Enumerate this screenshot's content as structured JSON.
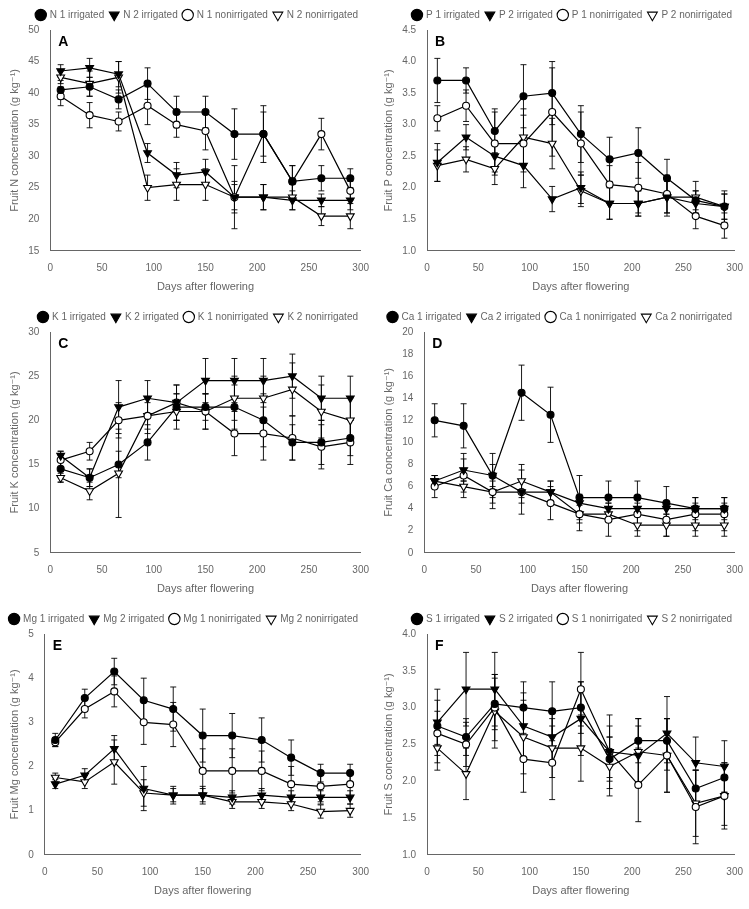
{
  "chart_data": [
    {
      "type": "line",
      "annotations": [
        "A"
      ],
      "x": [
        10,
        38,
        66,
        94,
        122,
        150,
        178,
        206,
        234,
        262,
        290
      ],
      "xlabel": "Days after flowering",
      "ylabel": "Fruit N concentration (g kg⁻¹)",
      "xlim": [
        0,
        300
      ],
      "xticks": [
        0,
        50,
        100,
        150,
        200,
        250,
        300
      ],
      "ylim": [
        15,
        50
      ],
      "yticks": [
        15,
        20,
        25,
        30,
        35,
        40,
        45,
        50
      ],
      "grid": false,
      "legend": "upper right",
      "series": [
        {
          "name": "N 1 irrigated",
          "color": "black",
          "marker": "circle",
          "values": [
            40.5,
            41.0,
            39.0,
            41.5,
            37.0,
            37.0,
            33.5,
            33.5,
            26.0,
            26.5,
            26.5
          ],
          "errors": [
            1.5,
            1.5,
            1.5,
            2.5,
            2.5,
            2.5,
            4.0,
            3.5,
            2.5,
            2.0,
            1.5
          ]
        },
        {
          "name": "N 2 irrigated",
          "color": "black",
          "marker": "triangle_down",
          "values": [
            43.5,
            44.0,
            43.0,
            30.5,
            27.0,
            27.5,
            23.5,
            23.5,
            23.0,
            23.0,
            23.0
          ],
          "errors": [
            1.0,
            1.5,
            2.0,
            1.5,
            2.0,
            2.0,
            2.5,
            2.0,
            1.5,
            1.0,
            1.5
          ]
        },
        {
          "name": "N 1 nonirrigated",
          "color": "black",
          "marker": "circle_open",
          "values": [
            39.5,
            36.5,
            35.5,
            38.0,
            35.0,
            34.0,
            23.5,
            33.5,
            26.0,
            33.5,
            24.5
          ],
          "errors": [
            1.5,
            2.0,
            1.5,
            3.0,
            2.0,
            3.0,
            5.0,
            4.5,
            2.5,
            2.5,
            1.5
          ]
        },
        {
          "name": "N 2 nonirrigated",
          "color": "black",
          "marker": "triangle_down_open",
          "values": [
            42.5,
            41.5,
            42.5,
            25.0,
            25.5,
            25.5,
            23.5,
            23.5,
            23.5,
            20.5,
            20.5
          ],
          "errors": [
            1.0,
            2.0,
            2.5,
            2.0,
            2.5,
            2.5,
            2.0,
            2.0,
            2.0,
            1.5,
            2.0
          ]
        }
      ]
    },
    {
      "type": "line",
      "annotations": [
        "B"
      ],
      "x": [
        10,
        38,
        66,
        94,
        122,
        150,
        178,
        206,
        234,
        262,
        290
      ],
      "xlabel": "Days after flowering",
      "ylabel": "Fruit P concentration (g kg⁻¹)",
      "xlim": [
        0,
        300
      ],
      "xticks": [
        0,
        50,
        100,
        150,
        200,
        250,
        300
      ],
      "ylim": [
        1.0,
        4.5
      ],
      "yticks": [
        {
          "value": 1.0,
          "label": "1.0"
        },
        1.5,
        {
          "value": 2.0,
          "label": "2.0"
        },
        2.5,
        {
          "value": 3.0,
          "label": "3.0"
        },
        3.5,
        {
          "value": 4.0,
          "label": "4.0"
        },
        4.5
      ],
      "grid": false,
      "legend": "upper right",
      "series": [
        {
          "name": "P 1 irrigated",
          "color": "black",
          "marker": "circle",
          "values": [
            3.7,
            3.7,
            2.9,
            3.45,
            3.5,
            2.85,
            2.45,
            2.55,
            2.15,
            1.8,
            1.7
          ],
          "errors": [
            0.35,
            0.2,
            0.35,
            0.5,
            0.5,
            0.45,
            0.35,
            0.4,
            0.3,
            0.15,
            0.2
          ]
        },
        {
          "name": "P 2 irrigated",
          "color": "black",
          "marker": "triangle_down",
          "values": [
            2.4,
            2.8,
            2.5,
            2.35,
            1.82,
            2.0,
            1.75,
            1.75,
            1.85,
            1.75,
            1.7
          ],
          "errors": [
            0.3,
            0.2,
            0.25,
            0.35,
            0.2,
            0.25,
            0.25,
            0.2,
            0.25,
            0.2,
            0.2
          ]
        },
        {
          "name": "P 1 nonirrigated",
          "color": "black",
          "marker": "circle_open",
          "values": [
            3.1,
            3.3,
            2.7,
            2.7,
            3.2,
            2.7,
            2.05,
            2.0,
            1.9,
            1.55,
            1.4
          ],
          "errors": [
            0.2,
            0.25,
            0.5,
            0.45,
            0.7,
            0.5,
            0.3,
            0.4,
            0.3,
            0.2,
            0.2
          ]
        },
        {
          "name": "P 2 nonirrigated",
          "color": "black",
          "marker": "triangle_down_open",
          "values": [
            2.35,
            2.45,
            2.3,
            2.8,
            2.7,
            1.95,
            1.75,
            1.75,
            1.85,
            1.85,
            1.7
          ],
          "errors": [
            0.25,
            0.2,
            0.25,
            0.45,
            0.4,
            0.25,
            0.25,
            0.2,
            0.3,
            0.25,
            0.25
          ]
        }
      ]
    },
    {
      "type": "line",
      "annotations": [
        "C"
      ],
      "x": [
        10,
        38,
        66,
        94,
        122,
        150,
        178,
        206,
        234,
        262,
        290
      ],
      "xlabel": "Days after flowering",
      "ylabel": "Fruit K concentration (g kg⁻¹)",
      "xlim": [
        0,
        300
      ],
      "xticks": [
        0,
        50,
        100,
        150,
        200,
        250,
        300
      ],
      "ylim": [
        5,
        30
      ],
      "yticks": [
        5,
        10,
        15,
        20,
        25,
        30
      ],
      "grid": false,
      "legend": "upper right",
      "series": [
        {
          "name": "K 1 irrigated",
          "color": "black",
          "marker": "circle",
          "values": [
            14.5,
            13.5,
            15.0,
            17.5,
            21.5,
            21.5,
            21.5,
            20.0,
            17.5,
            17.5,
            18.0
          ],
          "errors": [
            1.5,
            1.0,
            1.5,
            2.0,
            1.5,
            1.5,
            2.5,
            3.0,
            2.0,
            2.5,
            2.0
          ]
        },
        {
          "name": "K 2 irrigated",
          "color": "black",
          "marker": "triangle_down",
          "values": [
            16.0,
            13.5,
            21.5,
            22.5,
            22.0,
            24.5,
            24.5,
            24.5,
            25.0,
            22.5,
            22.5
          ],
          "errors": [
            0.5,
            1.0,
            3.0,
            2.0,
            2.0,
            2.5,
            2.5,
            2.5,
            2.5,
            2.5,
            2.5
          ]
        },
        {
          "name": "K 1 nonirrigated",
          "color": "black",
          "marker": "circle_open",
          "values": [
            15.5,
            16.5,
            20.0,
            20.5,
            22.0,
            21.0,
            18.5,
            18.5,
            18.0,
            17.0,
            17.5
          ],
          "errors": [
            1.0,
            1.0,
            2.0,
            1.5,
            2.0,
            2.0,
            2.5,
            3.0,
            2.5,
            2.5,
            2.5
          ]
        },
        {
          "name": "K 2 nonirrigated",
          "color": "black",
          "marker": "triangle_down_open",
          "values": [
            13.5,
            12.0,
            14.0,
            20.5,
            21.0,
            21.0,
            22.5,
            22.5,
            23.5,
            21.0,
            20.0
          ],
          "errors": [
            0.5,
            1.0,
            5.0,
            2.0,
            2.0,
            2.0,
            2.5,
            2.5,
            3.0,
            3.0,
            2.5
          ]
        }
      ]
    },
    {
      "type": "line",
      "annotations": [
        "D"
      ],
      "x": [
        10,
        38,
        66,
        94,
        122,
        150,
        178,
        206,
        234,
        262,
        290
      ],
      "xlabel": "Days after flowering",
      "ylabel": "Fruit Ca concentration (g kg⁻¹)",
      "xlim": [
        0,
        300
      ],
      "xticks": [
        0,
        50,
        100,
        150,
        200,
        250,
        300
      ],
      "ylim": [
        0,
        20
      ],
      "yticks": [
        0,
        2,
        4,
        6,
        8,
        10,
        12,
        14,
        16,
        18,
        20
      ],
      "grid": false,
      "legend": "upper right",
      "series": [
        {
          "name": "Ca 1 irrigated",
          "color": "black",
          "marker": "circle",
          "values": [
            12.0,
            11.5,
            7.0,
            14.5,
            12.5,
            5.0,
            5.0,
            5.0,
            4.5,
            4.0,
            4.0
          ],
          "errors": [
            1.5,
            2.0,
            2.0,
            2.5,
            2.5,
            2.0,
            1.5,
            1.5,
            1.5,
            1.0,
            1.0
          ]
        },
        {
          "name": "Ca 2 irrigated",
          "color": "black",
          "marker": "triangle_down",
          "values": [
            6.5,
            7.5,
            7.0,
            5.5,
            5.5,
            4.5,
            4.0,
            4.0,
            4.0,
            4.0,
            4.0
          ],
          "errors": [
            0.5,
            1.0,
            1.0,
            1.0,
            1.0,
            0.8,
            0.5,
            0.5,
            0.5,
            0.5,
            0.5
          ]
        },
        {
          "name": "Ca 1 nonirrigated",
          "color": "black",
          "marker": "circle_open",
          "values": [
            6.0,
            7.0,
            5.5,
            5.5,
            4.5,
            3.5,
            3.0,
            3.5,
            3.0,
            3.5,
            3.5
          ],
          "errors": [
            1.0,
            2.0,
            1.5,
            2.0,
            1.5,
            1.5,
            1.5,
            1.5,
            1.5,
            1.5,
            1.5
          ]
        },
        {
          "name": "Ca 2 nonirrigated",
          "color": "black",
          "marker": "triangle_down_open",
          "values": [
            6.5,
            6.0,
            5.5,
            6.5,
            5.5,
            3.5,
            3.5,
            2.5,
            2.5,
            2.5,
            2.5
          ],
          "errors": [
            0.5,
            0.5,
            1.0,
            1.5,
            1.0,
            0.8,
            0.5,
            1.0,
            1.0,
            1.0,
            1.0
          ]
        }
      ]
    },
    {
      "type": "line",
      "annotations": [
        "E"
      ],
      "x": [
        10,
        38,
        66,
        94,
        122,
        150,
        178,
        206,
        234,
        262,
        290
      ],
      "xlabel": "Days after flowering",
      "ylabel": "Fruit Mg concentration (g kg⁻¹)",
      "xlim": [
        0,
        300
      ],
      "xticks": [
        0,
        50,
        100,
        150,
        200,
        250,
        300
      ],
      "ylim": [
        0,
        5
      ],
      "yticks": [
        0,
        1,
        2,
        3,
        4,
        5
      ],
      "grid": false,
      "legend": "upper right",
      "series": [
        {
          "name": "Mg 1 irrigated",
          "color": "black",
          "marker": "circle",
          "values": [
            2.6,
            3.55,
            4.15,
            3.5,
            3.3,
            2.7,
            2.7,
            2.6,
            2.2,
            1.85,
            1.85
          ],
          "errors": [
            0.15,
            0.2,
            0.3,
            0.5,
            0.5,
            0.6,
            0.5,
            0.5,
            0.4,
            0.2,
            0.2
          ]
        },
        {
          "name": "Mg 2 irrigated",
          "color": "black",
          "marker": "triangle_down",
          "values": [
            1.6,
            1.8,
            2.4,
            1.5,
            1.35,
            1.35,
            1.3,
            1.35,
            1.3,
            1.3,
            1.3
          ],
          "errors": [
            0.1,
            0.15,
            0.3,
            0.5,
            0.2,
            0.2,
            0.15,
            0.15,
            0.15,
            0.15,
            0.15
          ]
        },
        {
          "name": "Mg 1 nonirrigated",
          "color": "black",
          "marker": "circle_open",
          "values": [
            2.55,
            3.3,
            3.7,
            3.0,
            2.95,
            1.9,
            1.9,
            1.9,
            1.6,
            1.55,
            1.6
          ],
          "errors": [
            0.1,
            0.2,
            0.35,
            0.5,
            0.5,
            0.5,
            0.5,
            0.45,
            0.4,
            0.35,
            0.3
          ]
        },
        {
          "name": "Mg 2 nonirrigated",
          "color": "black",
          "marker": "triangle_down_open",
          "values": [
            1.75,
            1.65,
            2.1,
            1.4,
            1.35,
            1.35,
            1.2,
            1.2,
            1.15,
            0.98,
            1.0
          ],
          "errors": [
            0.1,
            0.15,
            0.5,
            0.3,
            0.15,
            0.15,
            0.15,
            0.15,
            0.15,
            0.15,
            0.15
          ]
        }
      ]
    },
    {
      "type": "line",
      "annotations": [
        "F"
      ],
      "x": [
        10,
        38,
        66,
        94,
        122,
        150,
        178,
        206,
        234,
        262,
        290
      ],
      "xlabel": "Days after flowering",
      "ylabel": "Fruit S concentration (g kg⁻¹)",
      "xlim": [
        0,
        300
      ],
      "xticks": [
        0,
        50,
        100,
        150,
        200,
        250,
        300
      ],
      "ylim": [
        1.0,
        4.0
      ],
      "yticks": [
        {
          "value": 1.0,
          "label": "1.0"
        },
        1.5,
        {
          "value": 2.0,
          "label": "2.0"
        },
        2.5,
        {
          "value": 3.0,
          "label": "3.0"
        },
        3.5,
        {
          "value": 4.0,
          "label": "4.0"
        }
      ],
      "grid": false,
      "legend": "upper right",
      "series": [
        {
          "name": "S 1 irrigated",
          "color": "black",
          "marker": "circle",
          "values": [
            2.75,
            2.6,
            3.05,
            3.0,
            2.95,
            3.0,
            2.3,
            2.55,
            2.55,
            1.9,
            2.05
          ],
          "errors": [
            0.5,
            0.25,
            0.35,
            0.35,
            0.4,
            0.35,
            0.3,
            0.3,
            0.3,
            0.25,
            0.2
          ]
        },
        {
          "name": "S 2 irrigated",
          "color": "black",
          "marker": "triangle_down",
          "values": [
            2.8,
            3.25,
            3.25,
            2.75,
            2.6,
            2.85,
            2.4,
            2.35,
            2.65,
            2.25,
            2.2
          ],
          "errors": [
            0.3,
            0.5,
            0.5,
            0.45,
            0.35,
            0.5,
            0.35,
            0.4,
            0.5,
            0.35,
            0.35
          ]
        },
        {
          "name": "S 1 nonirrigated",
          "color": "black",
          "marker": "circle_open",
          "values": [
            2.65,
            2.5,
            3.0,
            2.3,
            2.25,
            3.25,
            2.4,
            1.95,
            2.35,
            1.65,
            1.8
          ],
          "errors": [
            0.3,
            0.3,
            0.45,
            0.45,
            0.5,
            0.5,
            0.5,
            0.5,
            0.5,
            0.5,
            0.45
          ]
        },
        {
          "name": "S 2 nonirrigated",
          "color": "black",
          "marker": "triangle_down_open",
          "values": [
            2.45,
            2.1,
            2.95,
            2.6,
            2.45,
            2.45,
            2.2,
            2.4,
            2.35,
            1.7,
            1.8
          ],
          "errors": [
            0.3,
            0.35,
            0.5,
            0.5,
            0.4,
            0.45,
            0.4,
            0.45,
            0.5,
            0.45,
            0.4
          ]
        }
      ]
    }
  ]
}
